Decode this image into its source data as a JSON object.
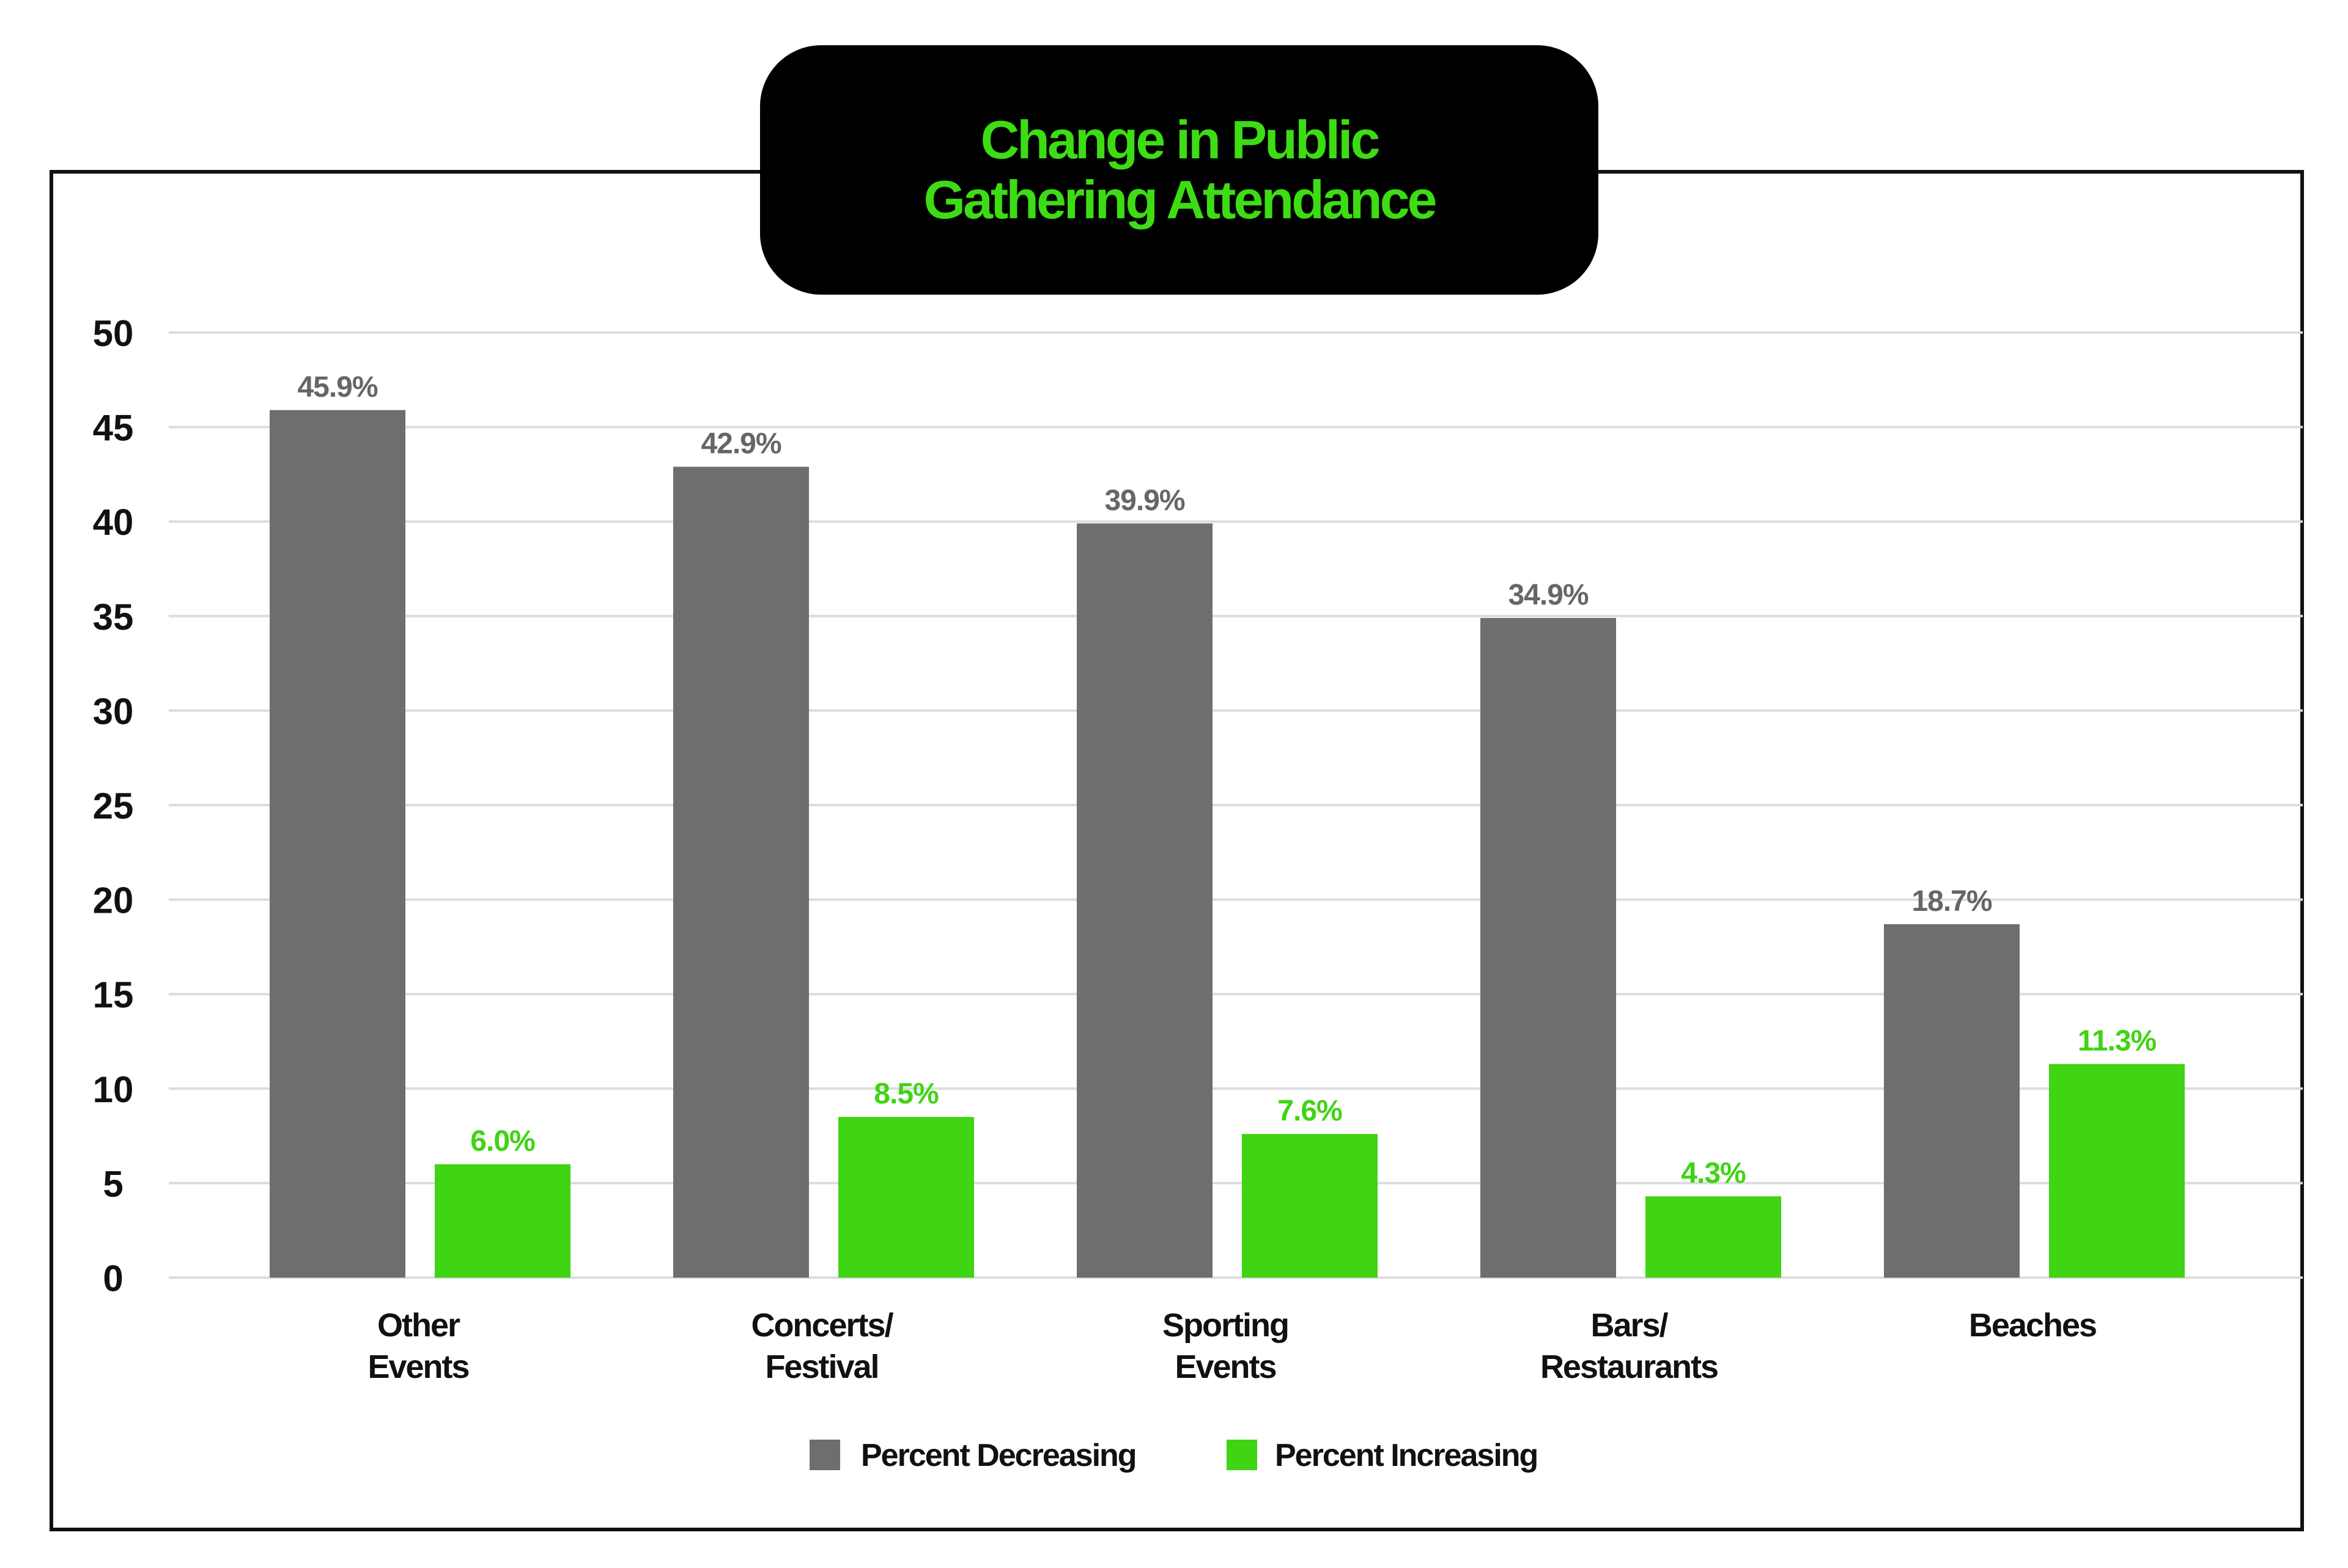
{
  "chart_data": {
    "type": "bar",
    "title": [
      "Change in Public",
      "Gathering Attendance"
    ],
    "categories": [
      [
        "Other",
        "Events"
      ],
      [
        "Concerts/",
        "Festival"
      ],
      [
        "Sporting",
        "Events"
      ],
      [
        "Bars/",
        "Restaurants"
      ],
      [
        "Beaches"
      ]
    ],
    "series": [
      {
        "name": "Percent Decreasing",
        "color": "#6e6e6e",
        "label_color": "#666666",
        "values": [
          45.9,
          42.9,
          39.9,
          34.9,
          18.7
        ],
        "labels": [
          "45.9%",
          "42.9%",
          "39.9%",
          "34.9%",
          "18.7%"
        ]
      },
      {
        "name": "Percent Increasing",
        "color": "#3fd414",
        "label_color": "#3fd414",
        "values": [
          6.0,
          8.5,
          7.6,
          4.3,
          11.3
        ],
        "labels": [
          "6.0%",
          "8.5%",
          "7.6%",
          "4.3%",
          "11.3%"
        ]
      }
    ],
    "yticks": [
      "0",
      "5",
      "10",
      "15",
      "20",
      "25",
      "30",
      "35",
      "40",
      "45",
      "50"
    ],
    "ylim": [
      0,
      50
    ],
    "grid": true,
    "legend_position": "bottom",
    "xlabel": "",
    "ylabel": ""
  }
}
